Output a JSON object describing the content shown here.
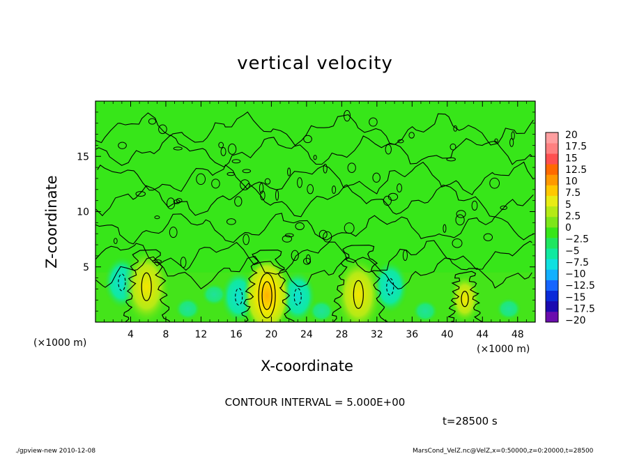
{
  "title": "vertical velocity",
  "x_axis": {
    "label": "X-coordinate",
    "unit_left": "(×1000 m)",
    "unit_right": "(×1000 m)"
  },
  "y_axis": {
    "label": "Z-coordinate"
  },
  "contour_interval_text": "CONTOUR INTERVAL = 5.000E+00",
  "time_text": "t=28500 s",
  "footer": {
    "left": "./gpview-new  2010-12-08",
    "right": "MarsCond_VelZ.nc@VelZ,x=0:50000,z=0:20000,t=28500"
  },
  "colors": {
    "background_field": "#37e619",
    "colorbar": [
      "#6a0dad",
      "#1a0ab0",
      "#0a2ad8",
      "#1565ff",
      "#12b0ff",
      "#10e0e0",
      "#10e9a0",
      "#1ee660",
      "#37e619",
      "#7de61a",
      "#b5ea16",
      "#e8ec14",
      "#ffc800",
      "#ff9900",
      "#ff6a00",
      "#ff5050",
      "#ff8080",
      "#ff9fa0"
    ]
  },
  "chart_data": {
    "type": "heatmap",
    "title": "vertical velocity",
    "xlabel": "X-coordinate",
    "ylabel": "Z-coordinate",
    "xlim": [
      0,
      50
    ],
    "ylim": [
      0,
      20
    ],
    "x_ticks": [
      4,
      8,
      12,
      16,
      20,
      24,
      28,
      32,
      36,
      40,
      44,
      48
    ],
    "x_tick_labels": [
      "4",
      "8",
      "12",
      "16",
      "20",
      "24",
      "28",
      "32",
      "36",
      "40",
      "44",
      "48"
    ],
    "y_ticks": [
      5,
      10,
      15
    ],
    "y_tick_labels": [
      "5",
      "10",
      "15"
    ],
    "colorbar_levels": [
      -20,
      -17.5,
      -15,
      -12.5,
      -10,
      -7.5,
      -5,
      -2.5,
      0,
      2.5,
      5,
      7.5,
      10,
      12.5,
      15,
      17.5,
      20
    ],
    "colorbar_labels": [
      "20",
      "17.5",
      "15",
      "12.5",
      "10",
      "7.5",
      "5",
      "2.5",
      "0",
      "−2.5",
      "−5",
      "−7.5",
      "−10",
      "−12.5",
      "−15",
      "−17.5",
      "−20"
    ],
    "contour_interval": 5,
    "updraft_cores": [
      {
        "x": 5.8,
        "z": 3.2,
        "max": 5
      },
      {
        "x": 19.5,
        "z": 2.4,
        "max": 7.5
      },
      {
        "x": 29.9,
        "z": 2.5,
        "max": 5
      },
      {
        "x": 42.0,
        "z": 2.1,
        "max": 2.5
      }
    ],
    "downdraft_cores": [
      {
        "x": 3.0,
        "z": 3.6,
        "min": -5
      },
      {
        "x": 16.3,
        "z": 2.3,
        "min": -5
      },
      {
        "x": 23.0,
        "z": 2.3,
        "min": -5
      },
      {
        "x": 33.5,
        "z": 3.2,
        "min": -5
      }
    ]
  }
}
